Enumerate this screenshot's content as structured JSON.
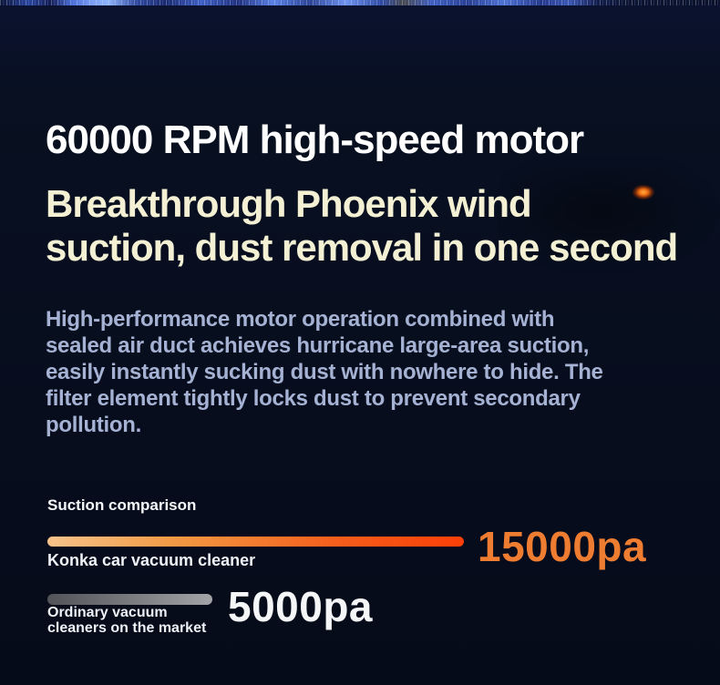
{
  "hero": {
    "headline": "60000 RPM high-speed motor",
    "subheadline_line1": "Breakthrough Phoenix wind",
    "subheadline_line2": "suction, dust removal in one second",
    "paragraph": "High-performance motor operation combined with sealed air duct achieves hurricane large-area suction, easily instantly sucking dust with nowhere to hide. The filter element tightly locks dust to prevent secondary pollution."
  },
  "comparison": {
    "title": "Suction comparison",
    "rows": [
      {
        "label": "Konka car vacuum cleaner",
        "value": "15000pa",
        "value_color": "#ee7c31"
      },
      {
        "label": "Ordinary vacuum cleaners on the market",
        "value": "5000pa",
        "value_color": "#f4f6f8"
      }
    ]
  },
  "colors": {
    "background": "#081021",
    "heading_white": "#ffffff",
    "heading_cream": "#f4f0d4",
    "paragraph_blue": "#a5b2d3",
    "accent_orange": "#ee7c31",
    "bar_orange_start": "#f7c38b",
    "bar_orange_end": "#fb3f07",
    "bar_gray_start": "#525358",
    "bar_gray_end": "#a2a4a8",
    "top_strip_blue": "#7fa2f8"
  },
  "chart_data": {
    "type": "bar",
    "orientation": "horizontal",
    "title": "Suction comparison",
    "categories": [
      "Konka car vacuum cleaner",
      "Ordinary vacuum cleaners on the market"
    ],
    "values": [
      15000,
      5000
    ],
    "unit": "pa",
    "value_labels": [
      "15000pa",
      "5000pa"
    ],
    "xlim": [
      0,
      15000
    ],
    "grid": false,
    "legend": false,
    "bar_colors": [
      "orange gradient #f7c38b→#fb3f07",
      "gray gradient #525358→#a2a4a8"
    ]
  }
}
